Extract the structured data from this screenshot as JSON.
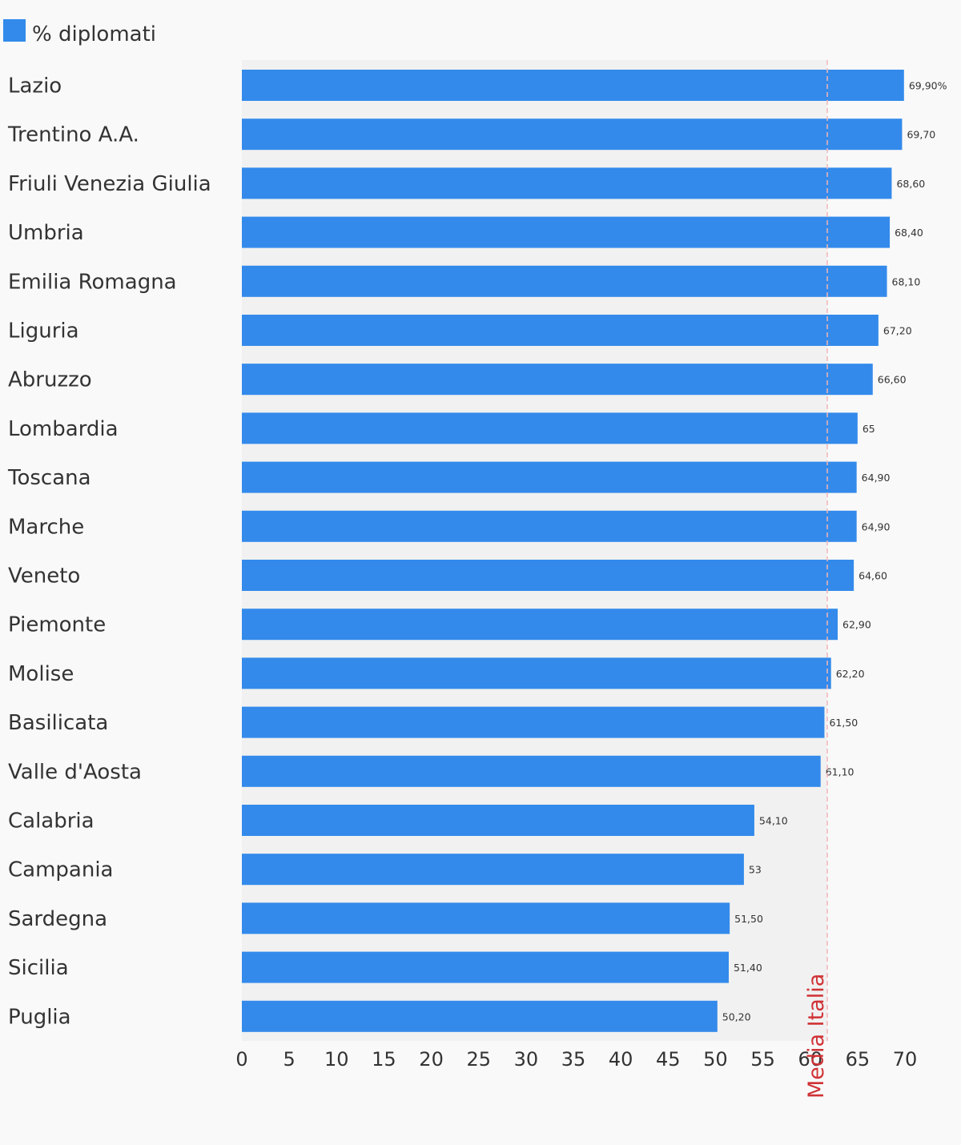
{
  "chart_data": {
    "type": "bar",
    "orientation": "horizontal",
    "title": "",
    "xlabel": "",
    "ylabel": "",
    "legend": {
      "position": "top-left",
      "entries": [
        "% diplomati"
      ]
    },
    "series": [
      {
        "name": "% diplomati",
        "color": "#338aeb",
        "values": [
          69.9,
          69.7,
          68.6,
          68.4,
          68.1,
          67.2,
          66.6,
          65,
          64.9,
          64.9,
          64.6,
          62.9,
          62.2,
          61.5,
          61.1,
          54.1,
          53,
          51.5,
          51.4,
          50.2
        ]
      }
    ],
    "categories": [
      "Lazio",
      "Trentino A.A.",
      "Friuli Venezia Giulia",
      "Umbria",
      "Emilia Romagna",
      "Liguria",
      "Abruzzo",
      "Lombardia",
      "Toscana",
      "Marche",
      "Veneto",
      "Piemonte",
      "Molise",
      "Basilicata",
      "Valle d'Aosta",
      "Calabria",
      "Campania",
      "Sardegna",
      "Sicilia",
      "Puglia"
    ],
    "data_labels": [
      "69,90%",
      "69,70",
      "68,60",
      "68,40",
      "68,10",
      "67,20",
      "66,60",
      "65",
      "64,90",
      "64,90",
      "64,60",
      "62,90",
      "62,20",
      "61,50",
      "61,10",
      "54,10",
      "53",
      "51,50",
      "51,40",
      "50,20"
    ],
    "xlim": [
      0,
      70
    ],
    "x_ticks": [
      0,
      5,
      10,
      15,
      20,
      25,
      30,
      35,
      40,
      45,
      50,
      55,
      60,
      65,
      70
    ],
    "reference_line": {
      "label": "Media Italia",
      "value": 61.8,
      "color": "#d03236",
      "style": "dashed"
    },
    "grid": false,
    "plot_background": "#f1f1f1",
    "background": "#f9f9f9"
  }
}
